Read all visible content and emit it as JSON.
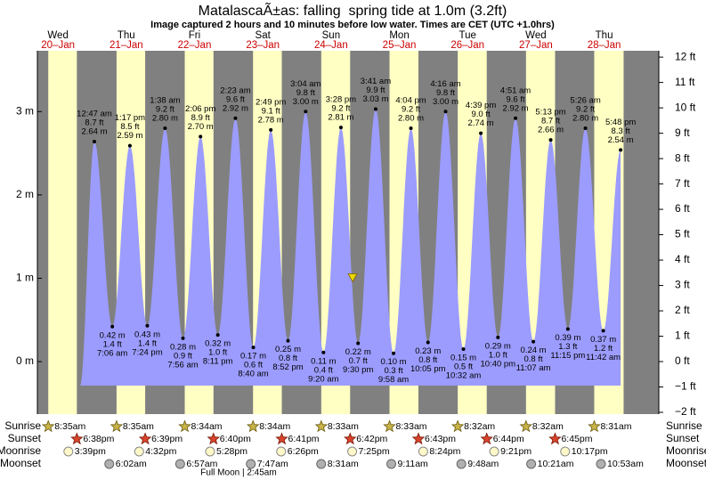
{
  "chart_data": {
    "type": "tide",
    "title": "MatalascaÃ±as: falling  spring tide at 1.0m (3.2ft)",
    "subtitle": "Image captured 2 hours and 10 minutes before low water. Times are CET (UTC +1.0hrs)",
    "now": {
      "m": 1.0
    },
    "ylim": [
      -0.63,
      3.73
    ],
    "yticks": [
      {
        "value": 0,
        "label": "0 m"
      },
      {
        "value": 1,
        "label": "1 m"
      },
      {
        "value": 2,
        "label": "2 m"
      },
      {
        "value": 3,
        "label": "3 m"
      }
    ],
    "y2lim": [
      -2.07,
      12.25
    ],
    "y2ticks": [
      {
        "value": -2,
        "label": "−2 ft"
      },
      {
        "value": -1,
        "label": "−1 ft"
      },
      {
        "value": 0,
        "label": "0 ft"
      },
      {
        "value": 1,
        "label": "1 ft"
      },
      {
        "value": 2,
        "label": "2 ft"
      },
      {
        "value": 3,
        "label": "3 ft"
      },
      {
        "value": 4,
        "label": "4 ft"
      },
      {
        "value": 5,
        "label": "5 ft"
      },
      {
        "value": 6,
        "label": "6 ft"
      },
      {
        "value": 7,
        "label": "7 ft"
      },
      {
        "value": 8,
        "label": "8 ft"
      },
      {
        "value": 9,
        "label": "9 ft"
      },
      {
        "value": 10,
        "label": "10 ft"
      },
      {
        "value": 11,
        "label": "11 ft"
      },
      {
        "value": 12,
        "label": "12 ft"
      }
    ],
    "row_labels": {
      "sunrise": "Sunrise",
      "sunset": "Sunset",
      "moonrise": "Moonrise",
      "moonset": "Moonset"
    },
    "full_moon": "Full Moon | 2:45am",
    "days": [
      {
        "dow": "Wed",
        "date": "20–Jan",
        "sunrise": "8:35am",
        "sunset": "6:38pm",
        "moonrise": "3:39pm",
        "moonset": null,
        "tides": []
      },
      {
        "dow": "Thu",
        "date": "21–Jan",
        "sunrise": "8:35am",
        "sunset": "6:39pm",
        "moonrise": "4:32pm",
        "moonset": "6:02am",
        "tides": [
          {
            "time": "12:47 am",
            "ft": 8.7,
            "ft_label": "8.7 ft",
            "m": 2.64,
            "m_label": "2.64 m"
          },
          {
            "time": "7:06 am",
            "ft": 1.4,
            "ft_label": "1.4 ft",
            "m": 0.42,
            "m_label": "0.42 m"
          },
          {
            "time": "1:17 pm",
            "ft": 8.5,
            "ft_label": "8.5 ft",
            "m": 2.59,
            "m_label": "2.59 m"
          },
          {
            "time": "7:24 pm",
            "ft": 1.4,
            "ft_label": "1.4 ft",
            "m": 0.43,
            "m_label": "0.43 m"
          }
        ]
      },
      {
        "dow": "Fri",
        "date": "22–Jan",
        "sunrise": "8:34am",
        "sunset": "6:40pm",
        "moonrise": "5:28pm",
        "moonset": "6:57am",
        "tides": [
          {
            "time": "1:38 am",
            "ft": 9.2,
            "ft_label": "9.2 ft",
            "m": 2.8,
            "m_label": "2.80 m"
          },
          {
            "time": "7:56 am",
            "ft": 0.9,
            "ft_label": "0.9 ft",
            "m": 0.28,
            "m_label": "0.28 m"
          },
          {
            "time": "2:06 pm",
            "ft": 8.9,
            "ft_label": "8.9 ft",
            "m": 2.7,
            "m_label": "2.70 m"
          },
          {
            "time": "8:11 pm",
            "ft": 1.0,
            "ft_label": "1.0 ft",
            "m": 0.32,
            "m_label": "0.32 m"
          }
        ]
      },
      {
        "dow": "Sat",
        "date": "23–Jan",
        "sunrise": "8:34am",
        "sunset": "6:41pm",
        "moonrise": "6:26pm",
        "moonset": "7:47am",
        "tides": [
          {
            "time": "2:23 am",
            "ft": 9.6,
            "ft_label": "9.6 ft",
            "m": 2.92,
            "m_label": "2.92 m"
          },
          {
            "time": "8:40 am",
            "ft": 0.6,
            "ft_label": "0.6 ft",
            "m": 0.17,
            "m_label": "0.17 m"
          },
          {
            "time": "2:49 pm",
            "ft": 9.1,
            "ft_label": "9.1 ft",
            "m": 2.78,
            "m_label": "2.78 m"
          },
          {
            "time": "8:52 pm",
            "ft": 0.8,
            "ft_label": "0.8 ft",
            "m": 0.25,
            "m_label": "0.25 m"
          }
        ]
      },
      {
        "dow": "Sun",
        "date": "24–Jan",
        "sunrise": "8:33am",
        "sunset": "6:42pm",
        "moonrise": "7:25pm",
        "moonset": "8:31am",
        "tides": [
          {
            "time": "3:04 am",
            "ft": 9.8,
            "ft_label": "9.8 ft",
            "m": 3.0,
            "m_label": "3.00 m"
          },
          {
            "time": "9:20 am",
            "ft": 0.4,
            "ft_label": "0.4 ft",
            "m": 0.11,
            "m_label": "0.11 m"
          },
          {
            "time": "3:28 pm",
            "ft": 9.2,
            "ft_label": "9.2 ft",
            "m": 2.81,
            "m_label": "2.81 m"
          },
          {
            "time": "9:30 pm",
            "ft": 0.7,
            "ft_label": "0.7 ft",
            "m": 0.22,
            "m_label": "0.22 m"
          }
        ]
      },
      {
        "dow": "Mon",
        "date": "25–Jan",
        "sunrise": "8:33am",
        "sunset": "6:43pm",
        "moonrise": "8:24pm",
        "moonset": "9:11am",
        "tides": [
          {
            "time": "3:41 am",
            "ft": 9.9,
            "ft_label": "9.9 ft",
            "m": 3.03,
            "m_label": "3.03 m"
          },
          {
            "time": "9:58 am",
            "ft": 0.3,
            "ft_label": "0.3 ft",
            "m": 0.1,
            "m_label": "0.10 m"
          },
          {
            "time": "4:04 pm",
            "ft": 9.2,
            "ft_label": "9.2 ft",
            "m": 2.8,
            "m_label": "2.80 m"
          },
          {
            "time": "10:05 pm",
            "ft": 0.8,
            "ft_label": "0.8 ft",
            "m": 0.23,
            "m_label": "0.23 m"
          }
        ]
      },
      {
        "dow": "Tue",
        "date": "26–Jan",
        "sunrise": "8:32am",
        "sunset": "6:44pm",
        "moonrise": "9:21pm",
        "moonset": "9:48am",
        "tides": [
          {
            "time": "4:16 am",
            "ft": 9.8,
            "ft_label": "9.8 ft",
            "m": 3.0,
            "m_label": "3.00 m"
          },
          {
            "time": "10:32 am",
            "ft": 0.5,
            "ft_label": "0.5 ft",
            "m": 0.15,
            "m_label": "0.15 m"
          },
          {
            "time": "4:39 pm",
            "ft": 9.0,
            "ft_label": "9.0 ft",
            "m": 2.74,
            "m_label": "2.74 m"
          },
          {
            "time": "10:40 pm",
            "ft": 1.0,
            "ft_label": "1.0 ft",
            "m": 0.29,
            "m_label": "0.29 m"
          }
        ]
      },
      {
        "dow": "Wed",
        "date": "27–Jan",
        "sunrise": "8:32am",
        "sunset": "6:45pm",
        "moonrise": "10:17pm",
        "moonset": "10:21am",
        "tides": [
          {
            "time": "4:51 am",
            "ft": 9.6,
            "ft_label": "9.6 ft",
            "m": 2.92,
            "m_label": "2.92 m"
          },
          {
            "time": "11:07 am",
            "ft": 0.8,
            "ft_label": "0.8 ft",
            "m": 0.24,
            "m_label": "0.24 m"
          },
          {
            "time": "5:13 pm",
            "ft": 8.7,
            "ft_label": "8.7 ft",
            "m": 2.66,
            "m_label": "2.66 m"
          },
          {
            "time": "11:15 pm",
            "ft": 1.3,
            "ft_label": "1.3 ft",
            "m": 0.39,
            "m_label": "0.39 m"
          }
        ]
      },
      {
        "dow": "Thu",
        "date": "28–Jan",
        "sunrise": "8:31am",
        "sunset": null,
        "moonrise": null,
        "moonset": "10:53am",
        "tides": [
          {
            "time": "5:26 am",
            "ft": 9.2,
            "ft_label": "9.2 ft",
            "m": 2.8,
            "m_label": "2.80 m"
          },
          {
            "time": "11:42 am",
            "ft": 1.2,
            "ft_label": "1.2 ft",
            "m": 0.37,
            "m_label": "0.37 m"
          },
          {
            "time": "5:48 pm",
            "ft": 8.3,
            "ft_label": "8.3 ft",
            "m": 2.54,
            "m_label": "2.54 m"
          }
        ]
      }
    ]
  }
}
